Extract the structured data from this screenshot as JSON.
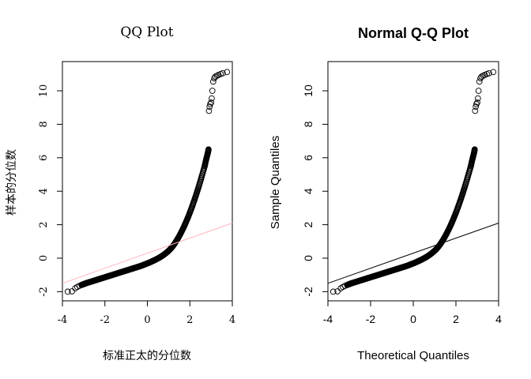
{
  "chart_data": [
    {
      "type": "scatter",
      "title": "QQ Plot",
      "xlabel": "标准正太的分位数",
      "ylabel": "样本的分位数",
      "xlim": [
        -4,
        4
      ],
      "ylim": [
        -2.5,
        11.5
      ],
      "x_ticks": [
        "-4",
        "-2",
        "0",
        "2",
        "4"
      ],
      "y_ticks": [
        "-2",
        "0",
        "2",
        "4",
        "6",
        "8",
        "10"
      ],
      "reference_line": {
        "slope": 0.45,
        "intercept": 0.3,
        "color": "#ffb6c1"
      },
      "point_color": "#000000",
      "grid": false
    },
    {
      "type": "scatter",
      "title": "Normal Q-Q Plot",
      "xlabel": "Theoretical Quantiles",
      "ylabel": "Sample Quantiles",
      "xlim": [
        -4,
        4
      ],
      "ylim": [
        -2.5,
        11.5
      ],
      "x_ticks": [
        "-4",
        "-2",
        "0",
        "2",
        "4"
      ],
      "y_ticks": [
        "-2",
        "0",
        "2",
        "4",
        "6",
        "8",
        "10"
      ],
      "reference_line": {
        "slope": 0.45,
        "intercept": 0.3,
        "color": "#000000"
      },
      "point_color": "#000000",
      "grid": false
    }
  ],
  "qq_points": [
    [
      -3.75,
      -2.0
    ],
    [
      -3.55,
      -1.98
    ],
    [
      -3.4,
      -1.8
    ],
    [
      -3.3,
      -1.72
    ],
    [
      -3.2,
      -1.65
    ],
    [
      -3.1,
      -1.6
    ],
    [
      -3.0,
      -1.55
    ],
    [
      -2.9,
      -1.5
    ],
    [
      -2.8,
      -1.46
    ],
    [
      -2.7,
      -1.42
    ],
    [
      -2.6,
      -1.38
    ],
    [
      -2.5,
      -1.34
    ],
    [
      -2.4,
      -1.3
    ],
    [
      -2.3,
      -1.26
    ],
    [
      -2.2,
      -1.22
    ],
    [
      -2.1,
      -1.18
    ],
    [
      -2.0,
      -1.14
    ],
    [
      -1.9,
      -1.1
    ],
    [
      -1.8,
      -1.06
    ],
    [
      -1.7,
      -1.02
    ],
    [
      -1.6,
      -0.98
    ],
    [
      -1.5,
      -0.94
    ],
    [
      -1.4,
      -0.9
    ],
    [
      -1.3,
      -0.86
    ],
    [
      -1.2,
      -0.82
    ],
    [
      -1.1,
      -0.78
    ],
    [
      -1.0,
      -0.74
    ],
    [
      -0.9,
      -0.7
    ],
    [
      -0.8,
      -0.66
    ],
    [
      -0.7,
      -0.62
    ],
    [
      -0.6,
      -0.58
    ],
    [
      -0.5,
      -0.54
    ],
    [
      -0.4,
      -0.5
    ],
    [
      -0.3,
      -0.46
    ],
    [
      -0.2,
      -0.41
    ],
    [
      -0.1,
      -0.36
    ],
    [
      0.0,
      -0.31
    ],
    [
      0.1,
      -0.26
    ],
    [
      0.2,
      -0.2
    ],
    [
      0.3,
      -0.14
    ],
    [
      0.4,
      -0.08
    ],
    [
      0.5,
      -0.01
    ],
    [
      0.6,
      0.06
    ],
    [
      0.7,
      0.14
    ],
    [
      0.8,
      0.23
    ],
    [
      0.9,
      0.33
    ],
    [
      1.0,
      0.44
    ],
    [
      1.1,
      0.57
    ],
    [
      1.2,
      0.72
    ],
    [
      1.3,
      0.9
    ],
    [
      1.4,
      1.1
    ],
    [
      1.5,
      1.32
    ],
    [
      1.6,
      1.56
    ],
    [
      1.7,
      1.82
    ],
    [
      1.8,
      2.1
    ],
    [
      1.9,
      2.4
    ],
    [
      2.0,
      2.72
    ],
    [
      2.1,
      3.06
    ],
    [
      2.2,
      3.42
    ],
    [
      2.3,
      3.8
    ],
    [
      2.4,
      4.2
    ],
    [
      2.5,
      4.62
    ],
    [
      2.6,
      5.06
    ],
    [
      2.7,
      5.5
    ],
    [
      2.75,
      5.8
    ],
    [
      2.8,
      6.05
    ],
    [
      2.85,
      6.3
    ],
    [
      2.88,
      6.5
    ],
    [
      2.9,
      8.8
    ],
    [
      2.93,
      9.05
    ],
    [
      2.96,
      9.2
    ],
    [
      3.0,
      9.3
    ],
    [
      3.03,
      9.55
    ],
    [
      3.06,
      10.0
    ],
    [
      3.1,
      10.55
    ],
    [
      3.15,
      10.75
    ],
    [
      3.2,
      10.85
    ],
    [
      3.28,
      10.9
    ],
    [
      3.35,
      10.95
    ],
    [
      3.45,
      11.0
    ],
    [
      3.55,
      11.05
    ],
    [
      3.75,
      11.12
    ]
  ]
}
